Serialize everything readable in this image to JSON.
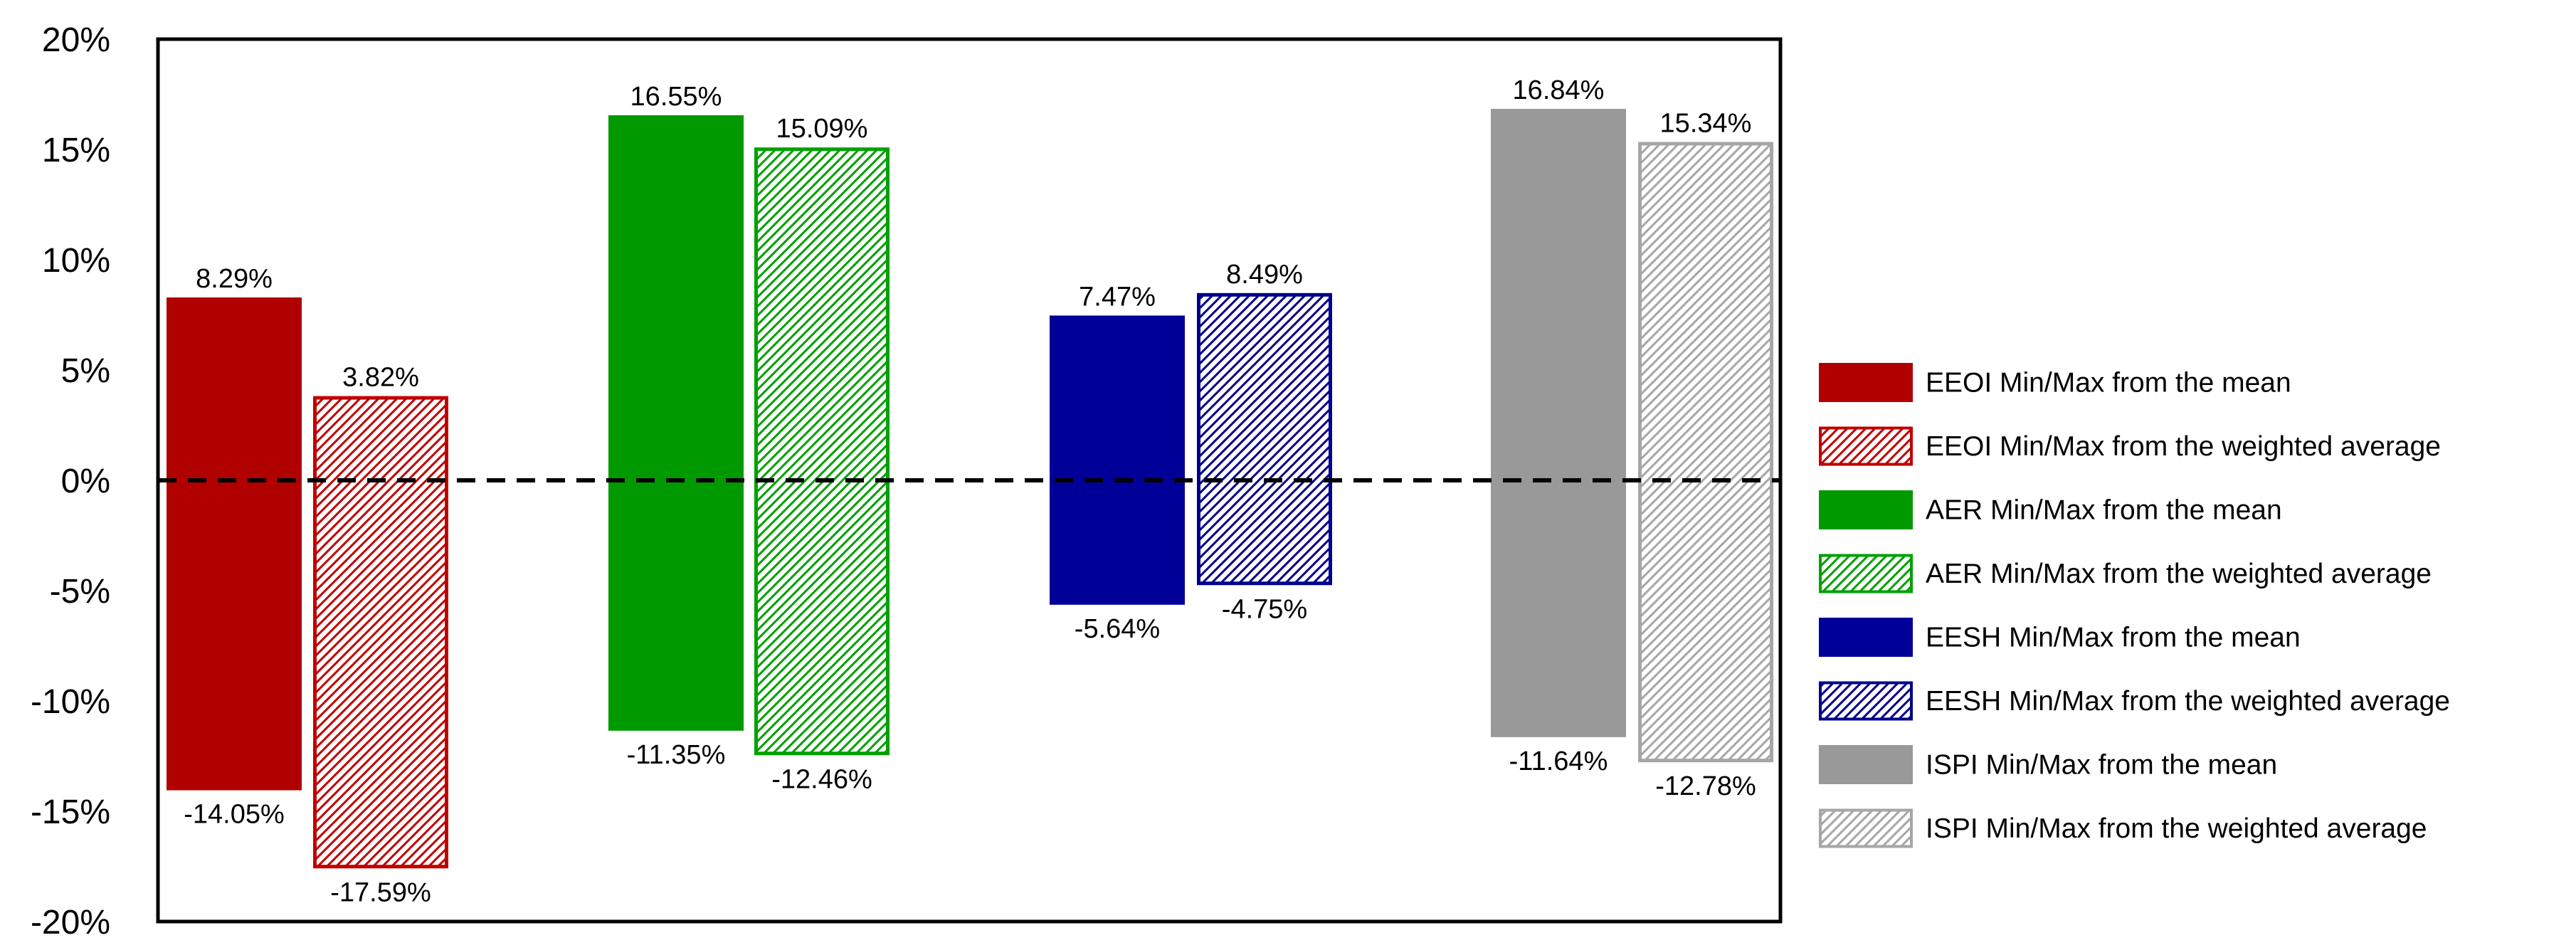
{
  "chart_data": {
    "type": "bar",
    "subtype": "floating-range",
    "title": "",
    "xlabel": "",
    "ylabel": "",
    "ylim": [
      -20,
      20
    ],
    "yticks": [
      20,
      15,
      10,
      5,
      0,
      -5,
      -10,
      -15,
      -20
    ],
    "ytick_labels": [
      "20%",
      "15%",
      "10%",
      "5%",
      "0%",
      "-5%",
      "-10%",
      "-15%",
      "-20%"
    ],
    "reference_line": {
      "y": 0,
      "style": "dashed"
    },
    "legend_position": "right",
    "series": [
      {
        "name": "EEOI Min/Max from the mean",
        "color": "#b00000",
        "pattern": "solid",
        "max": 8.29,
        "min": -14.05,
        "max_label": "8.29%",
        "min_label": "-14.05%"
      },
      {
        "name": "EEOI Min/Max from the weighted average",
        "color": "#c00000",
        "pattern": "hatched",
        "max": 3.82,
        "min": -17.59,
        "max_label": "3.82%",
        "min_label": "-17.59%"
      },
      {
        "name": "AER Min/Max from the mean",
        "color": "#009900",
        "pattern": "solid",
        "max": 16.55,
        "min": -11.35,
        "max_label": "16.55%",
        "min_label": "-11.35%"
      },
      {
        "name": "AER Min/Max from the weighted average",
        "color": "#00a000",
        "pattern": "hatched",
        "max": 15.09,
        "min": -12.46,
        "max_label": "15.09%",
        "min_label": "-12.46%"
      },
      {
        "name": "EESH Min/Max from the mean",
        "color": "#000099",
        "pattern": "solid",
        "max": 7.47,
        "min": -5.64,
        "max_label": "7.47%",
        "min_label": "-5.64%"
      },
      {
        "name": "EESH Min/Max from the weighted average",
        "color": "#00008b",
        "pattern": "hatched",
        "max": 8.49,
        "min": -4.75,
        "max_label": "8.49%",
        "min_label": "-4.75%"
      },
      {
        "name": "ISPI Min/Max from the mean",
        "color": "#999999",
        "pattern": "solid",
        "max": 16.84,
        "min": -11.64,
        "max_label": "16.84%",
        "min_label": "-11.64%"
      },
      {
        "name": "ISPI Min/Max from the weighted average",
        "color": "#a6a6a6",
        "pattern": "hatched",
        "max": 15.34,
        "min": -12.78,
        "max_label": "15.34%",
        "min_label": "-12.78%"
      }
    ]
  }
}
